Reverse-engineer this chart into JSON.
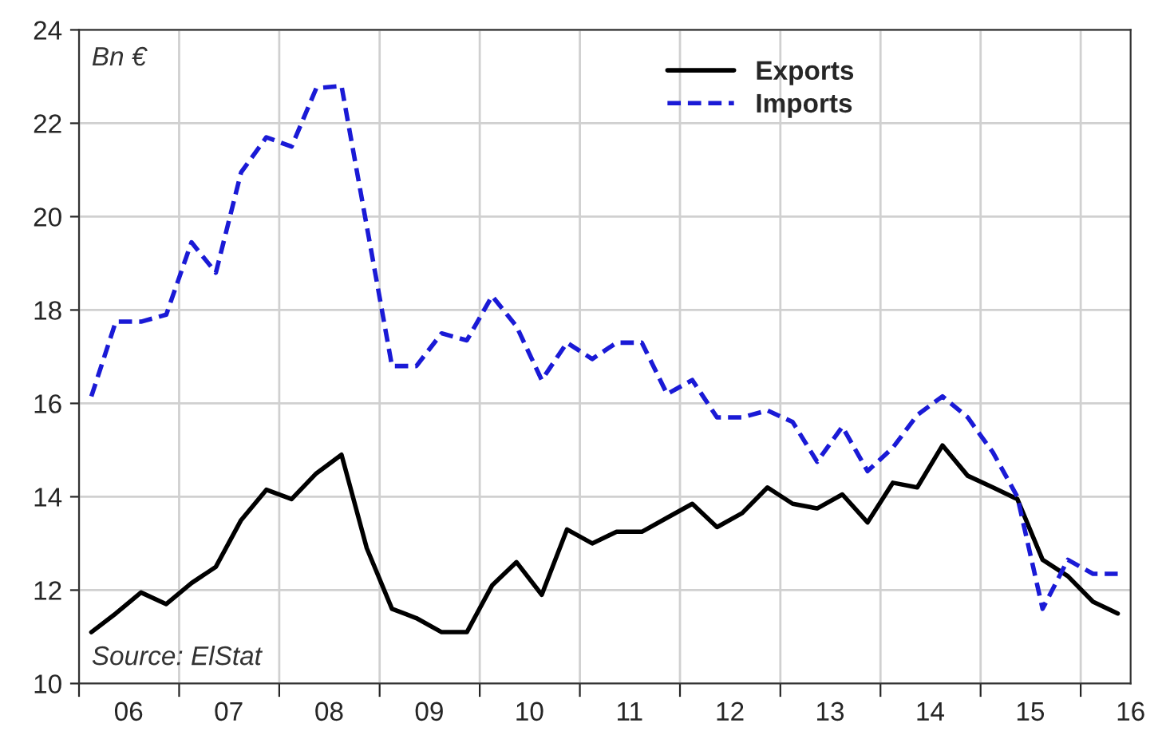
{
  "chart_data": {
    "type": "line",
    "annotations": [
      "Bn €",
      "Source: ElStat"
    ],
    "x": [
      "2006-02-15",
      "2006-05-15",
      "2006-08-15",
      "2006-11-15",
      "2007-02-15",
      "2007-05-15",
      "2007-08-15",
      "2007-11-15",
      "2008-02-15",
      "2008-05-15",
      "2008-08-15",
      "2008-11-15",
      "2009-02-15",
      "2009-05-15",
      "2009-08-15",
      "2009-11-15",
      "2010-02-15",
      "2010-05-15",
      "2010-08-15",
      "2010-11-15",
      "2011-02-15",
      "2011-05-15",
      "2011-08-15",
      "2011-11-15",
      "2012-02-15",
      "2012-05-15",
      "2012-08-15",
      "2012-11-15",
      "2013-02-15",
      "2013-05-15",
      "2013-08-15",
      "2013-11-15",
      "2014-02-15",
      "2014-05-15",
      "2014-08-15",
      "2014-11-15",
      "2015-02-15",
      "2015-05-15",
      "2015-08-15",
      "2015-11-15",
      "2016-02-15",
      "2016-05-15"
    ],
    "series": [
      {
        "name": "Exports",
        "color": "#000000",
        "line_style": "solid",
        "values": [
          11.1,
          11.5,
          11.95,
          11.7,
          12.15,
          12.5,
          13.5,
          14.15,
          13.95,
          14.5,
          14.9,
          12.9,
          11.6,
          11.4,
          11.1,
          11.1,
          12.1,
          12.6,
          11.9,
          13.3,
          13.0,
          13.25,
          13.25,
          13.55,
          13.85,
          13.35,
          13.65,
          14.2,
          13.85,
          13.75,
          14.05,
          13.45,
          14.3,
          14.2,
          15.1,
          14.45,
          14.2,
          13.95,
          12.65,
          12.3,
          11.75,
          11.5
        ]
      },
      {
        "name": "Imports",
        "color": "#1a1ad6",
        "line_style": "dashed",
        "values": [
          16.15,
          17.75,
          17.75,
          17.9,
          19.45,
          18.8,
          20.95,
          21.7,
          21.5,
          22.75,
          22.8,
          19.8,
          16.8,
          16.8,
          17.5,
          17.35,
          18.3,
          17.65,
          16.5,
          17.3,
          16.95,
          17.3,
          17.3,
          16.2,
          16.5,
          15.7,
          15.7,
          15.85,
          15.6,
          14.75,
          15.5,
          14.55,
          15.05,
          15.75,
          16.15,
          15.7,
          14.95,
          14.0,
          11.6,
          12.65,
          12.35,
          12.35
        ]
      }
    ],
    "xlim": [
      "2006-01-01",
      "2016-07-01"
    ],
    "xticks": [
      {
        "value": "2006-01-01",
        "label": null
      },
      {
        "value": "2006-07-01",
        "label": "06"
      },
      {
        "value": "2007-01-01",
        "label": null
      },
      {
        "value": "2007-07-01",
        "label": "07"
      },
      {
        "value": "2008-01-01",
        "label": null
      },
      {
        "value": "2008-07-01",
        "label": "08"
      },
      {
        "value": "2009-01-01",
        "label": null
      },
      {
        "value": "2009-07-01",
        "label": "09"
      },
      {
        "value": "2010-01-01",
        "label": null
      },
      {
        "value": "2010-07-01",
        "label": "10"
      },
      {
        "value": "2011-01-01",
        "label": null
      },
      {
        "value": "2011-07-01",
        "label": "11"
      },
      {
        "value": "2012-01-01",
        "label": null
      },
      {
        "value": "2012-07-01",
        "label": "12"
      },
      {
        "value": "2013-01-01",
        "label": null
      },
      {
        "value": "2013-07-01",
        "label": "13"
      },
      {
        "value": "2014-01-01",
        "label": null
      },
      {
        "value": "2014-07-01",
        "label": "14"
      },
      {
        "value": "2015-01-01",
        "label": null
      },
      {
        "value": "2015-07-01",
        "label": "15"
      },
      {
        "value": "2016-01-01",
        "label": null
      },
      {
        "value": "2016-07-01",
        "label": "16"
      }
    ],
    "ylim": [
      10,
      24
    ],
    "yticks": [
      10,
      12,
      14,
      16,
      18,
      20,
      22,
      24
    ],
    "grid": true,
    "legend": "top right"
  }
}
